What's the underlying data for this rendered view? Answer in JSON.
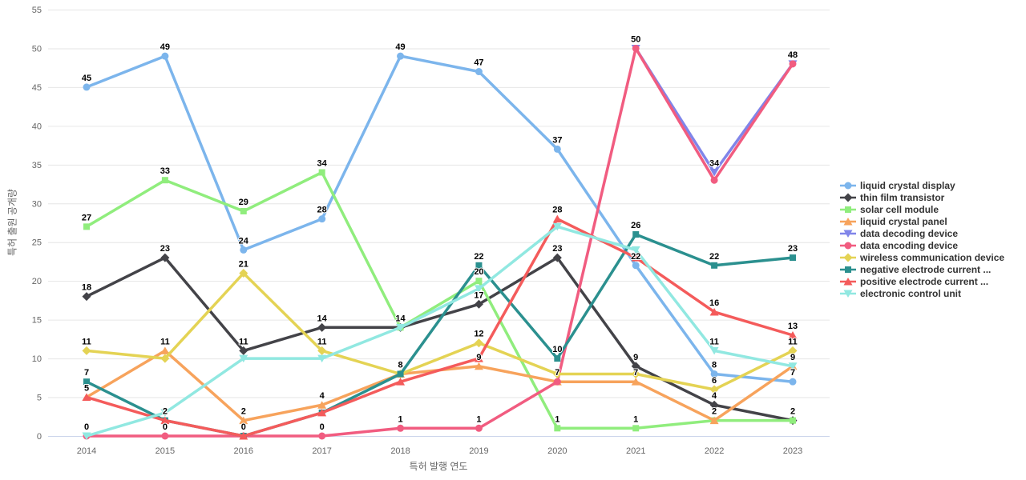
{
  "chart_data": {
    "type": "line",
    "title": "",
    "xlabel": "특허 발행 연도",
    "ylabel": "특허 출원 공개량",
    "x_categories": [
      "2014",
      "2015",
      "2016",
      "2017",
      "2018",
      "2019",
      "2020",
      "2021",
      "2022",
      "2023"
    ],
    "ylim": [
      0,
      55
    ],
    "y_ticks": [
      0,
      5,
      10,
      15,
      20,
      25,
      30,
      35,
      40,
      45,
      50,
      55
    ],
    "grid": "horizontal",
    "legend_position": "right",
    "colors": {
      "axis_line": "#ccd6eb",
      "grid_line": "#e6e6e6",
      "tick_text": "#666666",
      "legend_text": "#333333",
      "label_text": "#000000"
    },
    "series": [
      {
        "name": "liquid crystal display",
        "color": "#7cb5ec",
        "symbol": "circle",
        "values": [
          45,
          49,
          24,
          28,
          49,
          47,
          37,
          22,
          8,
          7
        ],
        "labels": [
          45,
          49,
          24,
          28,
          49,
          47,
          37,
          22,
          8,
          7
        ]
      },
      {
        "name": "thin film transistor",
        "color": "#434348",
        "symbol": "diamond",
        "values": [
          18,
          23,
          11,
          14,
          14,
          17,
          23,
          9,
          4,
          2
        ],
        "labels": [
          18,
          23,
          11,
          14,
          null,
          17,
          23,
          9,
          4,
          null
        ]
      },
      {
        "name": "solar cell module",
        "color": "#90ed7d",
        "symbol": "square",
        "values": [
          27,
          33,
          29,
          34,
          14,
          20,
          1,
          1,
          2,
          2
        ],
        "labels": [
          27,
          33,
          29,
          34,
          14,
          20,
          1,
          1,
          null,
          2
        ]
      },
      {
        "name": "liquid crystal panel",
        "color": "#f7a35c",
        "symbol": "triangle",
        "values": [
          5,
          11,
          2,
          4,
          8,
          9,
          7,
          7,
          2,
          9
        ],
        "labels": [
          null,
          11,
          2,
          4,
          null,
          9,
          null,
          7,
          2,
          null
        ]
      },
      {
        "name": "data decoding device",
        "color": "#8085e9",
        "symbol": "triangle-down",
        "values": [
          null,
          null,
          null,
          null,
          null,
          null,
          null,
          50,
          34,
          48
        ],
        "labels": [
          null,
          null,
          null,
          null,
          null,
          null,
          null,
          null,
          34,
          48
        ]
      },
      {
        "name": "data encoding device",
        "color": "#f15c80",
        "symbol": "circle",
        "values": [
          0,
          0,
          0,
          0,
          1,
          1,
          7,
          50,
          33,
          48
        ],
        "labels": [
          0,
          0,
          null,
          0,
          1,
          1,
          7,
          50,
          null,
          48
        ]
      },
      {
        "name": "wireless communication device",
        "color": "#e4d354",
        "symbol": "diamond",
        "values": [
          11,
          10,
          21,
          11,
          8,
          12,
          8,
          8,
          6,
          11
        ],
        "labels": [
          11,
          null,
          21,
          11,
          null,
          12,
          null,
          null,
          6,
          11
        ]
      },
      {
        "name": "negative electrode current ...",
        "color": "#2b908f",
        "symbol": "square",
        "values": [
          7,
          2,
          0,
          3,
          8,
          22,
          10,
          26,
          22,
          23
        ],
        "labels": [
          7,
          2,
          0,
          null,
          8,
          22,
          10,
          26,
          22,
          23
        ]
      },
      {
        "name": "positive electrode current ...",
        "color": "#f45b5b",
        "symbol": "triangle",
        "values": [
          5,
          2,
          0,
          3,
          7,
          10,
          28,
          23,
          16,
          13
        ],
        "labels": [
          5,
          null,
          null,
          null,
          null,
          null,
          28,
          null,
          16,
          13
        ]
      },
      {
        "name": "electronic control unit",
        "color": "#91e8e1",
        "symbol": "triangle-down",
        "values": [
          0,
          3,
          10,
          10,
          14,
          19,
          27,
          24,
          11,
          9
        ],
        "labels": [
          null,
          null,
          null,
          null,
          null,
          null,
          null,
          null,
          11,
          9
        ]
      }
    ]
  }
}
